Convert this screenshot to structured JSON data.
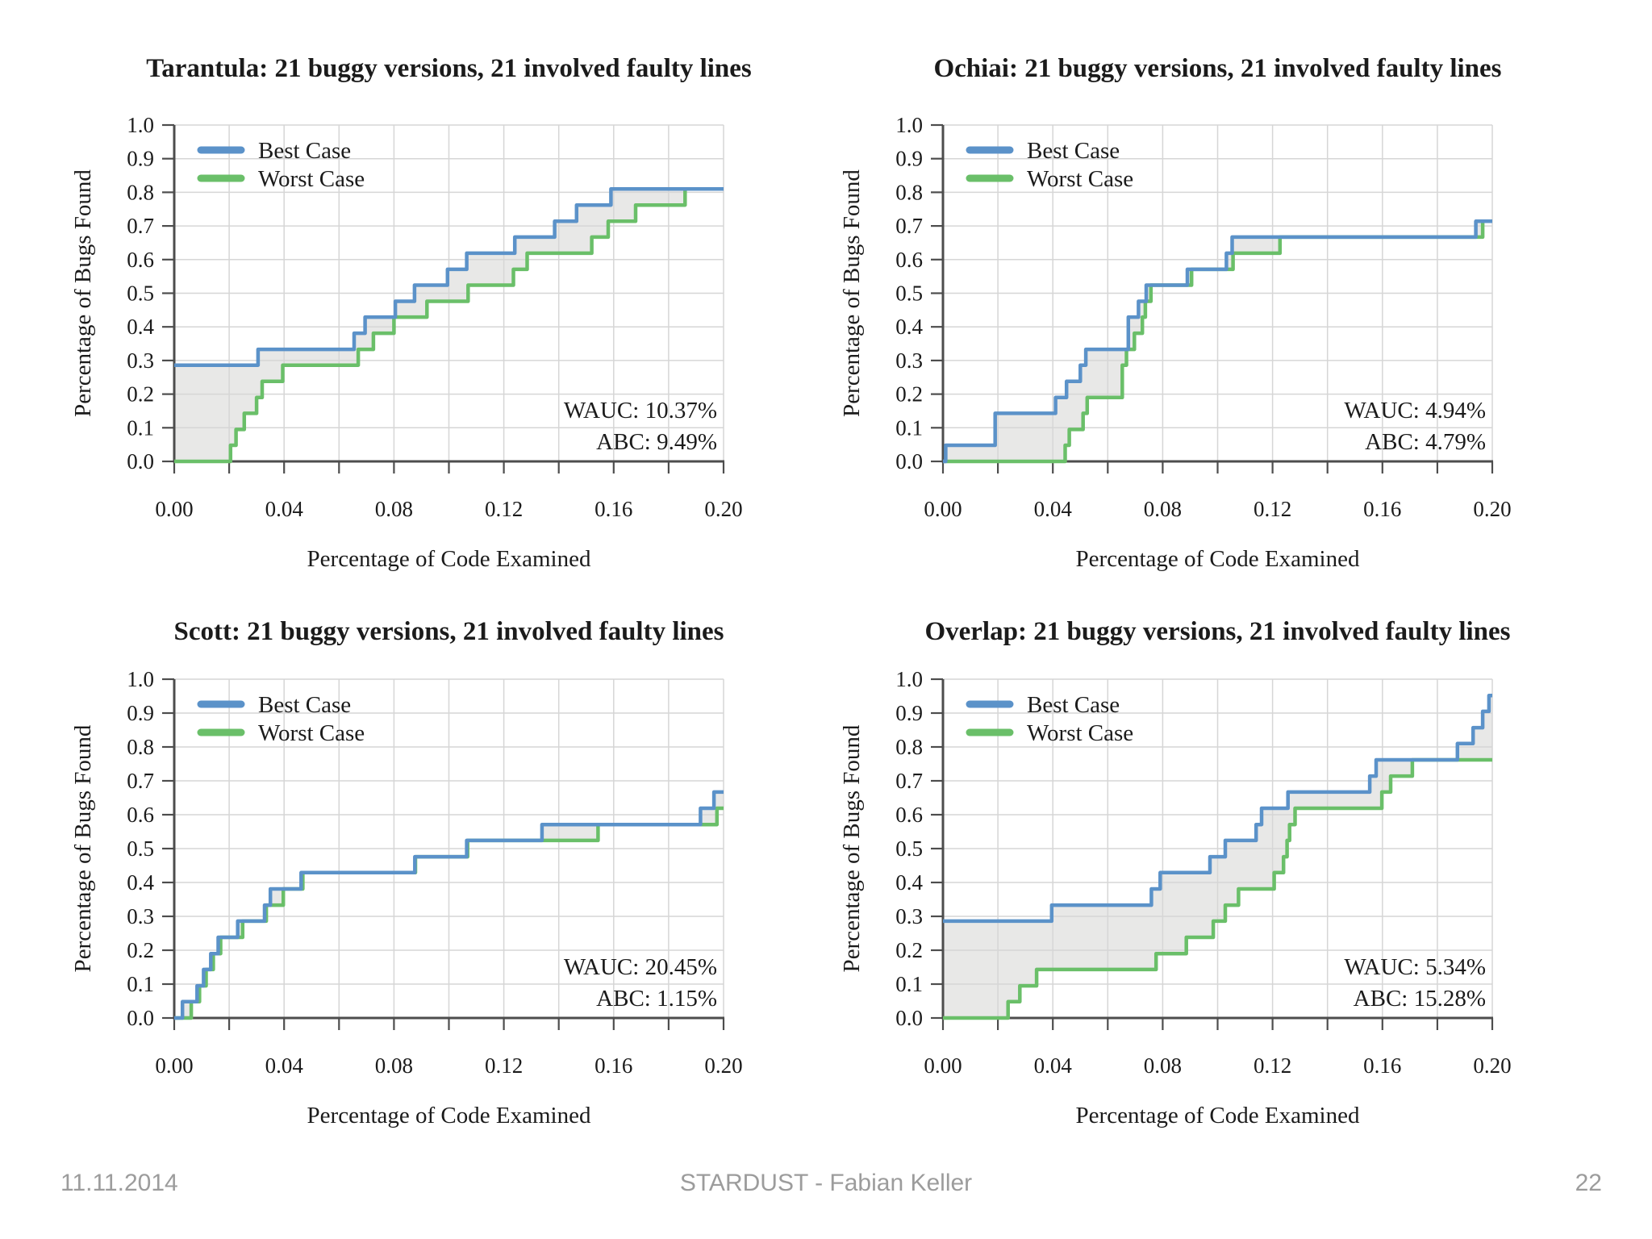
{
  "slide": {
    "footer": {
      "date": "11.11.2014",
      "center": "STARDUST - Fabian Keller",
      "page_number": "22"
    }
  },
  "legend": {
    "best_label": "Best Case",
    "worst_label": "Worst Case"
  },
  "axes": {
    "xlabel": "Percentage of Code Examined",
    "ylabel": "Percentage of Bugs Found",
    "xlim": [
      0,
      0.2
    ],
    "ylim": [
      0,
      1.0
    ],
    "x_tick_labels": [
      "0.00",
      "0.04",
      "0.08",
      "0.12",
      "0.16",
      "0.20"
    ],
    "y_tick_labels": [
      "0.0",
      "0.1",
      "0.2",
      "0.3",
      "0.4",
      "0.5",
      "0.6",
      "0.7",
      "0.8",
      "0.9",
      "1.0"
    ],
    "x_minor_tick_step": 0.02,
    "grid": "on"
  },
  "colors": {
    "best": "#5b92c9",
    "worst": "#6abf69",
    "band_fill": "#e8e8e7",
    "grid": "#d6d6d6",
    "axis": "#4d4d4d",
    "text": "#1b1b1b",
    "footer_text": "#9c9c9c"
  },
  "chart_data": [
    {
      "type": "line",
      "subtype": "step-after",
      "title": "Tarantula: 21 buggy versions, 21 involved faulty lines",
      "wauc": 10.37,
      "abc": 9.49,
      "wauc_label": "WAUC: 10.37%",
      "abc_label": "ABC: 9.49%",
      "series": [
        {
          "name": "Best Case",
          "points": [
            [
              0,
              0.286
            ],
            [
              0.0305,
              0.333
            ],
            [
              0.0655,
              0.381
            ],
            [
              0.0695,
              0.429
            ],
            [
              0.0805,
              0.476
            ],
            [
              0.0875,
              0.524
            ],
            [
              0.0995,
              0.571
            ],
            [
              0.1065,
              0.619
            ],
            [
              0.124,
              0.667
            ],
            [
              0.1385,
              0.714
            ],
            [
              0.1465,
              0.762
            ],
            [
              0.159,
              0.81
            ]
          ]
        },
        {
          "name": "Worst Case",
          "points": [
            [
              0,
              0
            ],
            [
              0.0205,
              0.048
            ],
            [
              0.0225,
              0.095
            ],
            [
              0.0255,
              0.143
            ],
            [
              0.03,
              0.19
            ],
            [
              0.032,
              0.238
            ],
            [
              0.0395,
              0.286
            ],
            [
              0.067,
              0.333
            ],
            [
              0.0725,
              0.381
            ],
            [
              0.08,
              0.429
            ],
            [
              0.092,
              0.476
            ],
            [
              0.107,
              0.524
            ],
            [
              0.1235,
              0.571
            ],
            [
              0.1285,
              0.619
            ],
            [
              0.152,
              0.667
            ],
            [
              0.158,
              0.714
            ],
            [
              0.168,
              0.762
            ],
            [
              0.186,
              0.81
            ]
          ]
        }
      ]
    },
    {
      "type": "line",
      "subtype": "step-after",
      "title": "Ochiai: 21 buggy versions, 21 involved faulty lines",
      "wauc": 4.94,
      "abc": 4.79,
      "wauc_label": "WAUC: 4.94%",
      "abc_label": "ABC: 4.79%",
      "series": [
        {
          "name": "Best Case",
          "points": [
            [
              0,
              0
            ],
            [
              0.001,
              0.048
            ],
            [
              0.019,
              0.143
            ],
            [
              0.041,
              0.19
            ],
            [
              0.045,
              0.238
            ],
            [
              0.05,
              0.286
            ],
            [
              0.052,
              0.333
            ],
            [
              0.0675,
              0.429
            ],
            [
              0.0712,
              0.476
            ],
            [
              0.074,
              0.524
            ],
            [
              0.089,
              0.571
            ],
            [
              0.1032,
              0.619
            ],
            [
              0.1053,
              0.667
            ],
            [
              0.194,
              0.714
            ]
          ]
        },
        {
          "name": "Worst Case",
          "points": [
            [
              0,
              0
            ],
            [
              0.0445,
              0.048
            ],
            [
              0.046,
              0.095
            ],
            [
              0.051,
              0.143
            ],
            [
              0.0525,
              0.19
            ],
            [
              0.0653,
              0.286
            ],
            [
              0.0668,
              0.333
            ],
            [
              0.0697,
              0.381
            ],
            [
              0.0726,
              0.429
            ],
            [
              0.0737,
              0.476
            ],
            [
              0.0757,
              0.524
            ],
            [
              0.0905,
              0.571
            ],
            [
              0.1056,
              0.619
            ],
            [
              0.1227,
              0.667
            ],
            [
              0.1965,
              0.714
            ]
          ]
        }
      ]
    },
    {
      "type": "line",
      "subtype": "step-after",
      "title": "Scott: 21 buggy versions, 21 involved faulty lines",
      "wauc": 20.45,
      "abc": 1.15,
      "wauc_label": "WAUC: 20.45%",
      "abc_label": "ABC: 1.15%",
      "series": [
        {
          "name": "Best Case",
          "points": [
            [
              0,
              0
            ],
            [
              0.003,
              0.048
            ],
            [
              0.0083,
              0.095
            ],
            [
              0.0107,
              0.143
            ],
            [
              0.0133,
              0.19
            ],
            [
              0.016,
              0.238
            ],
            [
              0.0231,
              0.286
            ],
            [
              0.0329,
              0.333
            ],
            [
              0.035,
              0.381
            ],
            [
              0.0462,
              0.429
            ],
            [
              0.0876,
              0.476
            ],
            [
              0.1065,
              0.524
            ],
            [
              0.1339,
              0.571
            ],
            [
              0.1916,
              0.619
            ],
            [
              0.1965,
              0.667
            ]
          ]
        },
        {
          "name": "Worst Case",
          "points": [
            [
              0,
              0
            ],
            [
              0.0062,
              0.048
            ],
            [
              0.0092,
              0.095
            ],
            [
              0.0116,
              0.143
            ],
            [
              0.0142,
              0.19
            ],
            [
              0.0169,
              0.238
            ],
            [
              0.0249,
              0.286
            ],
            [
              0.0335,
              0.333
            ],
            [
              0.0397,
              0.381
            ],
            [
              0.0468,
              0.429
            ],
            [
              0.0878,
              0.476
            ],
            [
              0.1068,
              0.524
            ],
            [
              0.1543,
              0.571
            ],
            [
              0.1976,
              0.619
            ]
          ]
        }
      ]
    },
    {
      "type": "line",
      "subtype": "step-after",
      "title": "Overlap: 21 buggy versions, 21 involved faulty lines",
      "wauc": 5.34,
      "abc": 15.28,
      "wauc_label": "WAUC: 5.34%",
      "abc_label": "ABC: 15.28%",
      "series": [
        {
          "name": "Best Case",
          "points": [
            [
              0,
              0.286
            ],
            [
              0.0396,
              0.333
            ],
            [
              0.0759,
              0.381
            ],
            [
              0.0791,
              0.429
            ],
            [
              0.0972,
              0.476
            ],
            [
              0.1028,
              0.524
            ],
            [
              0.114,
              0.571
            ],
            [
              0.116,
              0.619
            ],
            [
              0.1256,
              0.667
            ],
            [
              0.1554,
              0.714
            ],
            [
              0.1577,
              0.762
            ],
            [
              0.1873,
              0.81
            ],
            [
              0.193,
              0.857
            ],
            [
              0.1965,
              0.905
            ],
            [
              0.1988,
              0.952
            ]
          ]
        },
        {
          "name": "Worst Case",
          "points": [
            [
              0,
              0
            ],
            [
              0.0237,
              0.048
            ],
            [
              0.028,
              0.095
            ],
            [
              0.0341,
              0.143
            ],
            [
              0.0776,
              0.19
            ],
            [
              0.0886,
              0.238
            ],
            [
              0.0984,
              0.286
            ],
            [
              0.1028,
              0.333
            ],
            [
              0.1076,
              0.381
            ],
            [
              0.1206,
              0.429
            ],
            [
              0.124,
              0.476
            ],
            [
              0.1253,
              0.524
            ],
            [
              0.1262,
              0.571
            ],
            [
              0.1282,
              0.619
            ],
            [
              0.1598,
              0.667
            ],
            [
              0.163,
              0.714
            ],
            [
              0.1709,
              0.762
            ]
          ]
        }
      ]
    }
  ]
}
